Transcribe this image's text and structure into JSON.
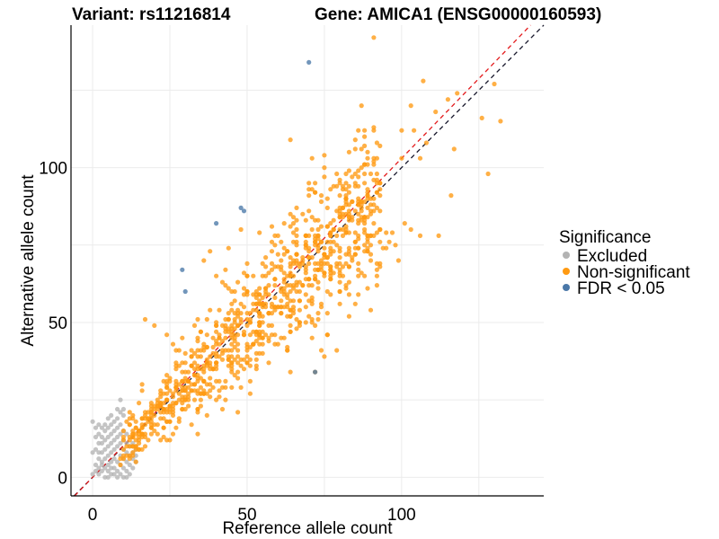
{
  "chart_data": {
    "type": "scatter",
    "title_left": "Variant: rs11216814",
    "title_right": "Gene: AMICA1 (ENSG00000160593)",
    "xlabel": "Reference allele count",
    "ylabel": "Alternative allele count",
    "xlim": [
      -7,
      146
    ],
    "ylim": [
      -6,
      146
    ],
    "xticks": [
      0,
      50,
      100
    ],
    "yticks": [
      0,
      50,
      100
    ],
    "grid": true,
    "reference_lines": [
      {
        "slope": 1.0,
        "intercept": 0,
        "color": "#1a1a2e",
        "style": "dashed"
      },
      {
        "slope": 1.03,
        "intercept": 0,
        "color": "#e31a1c",
        "style": "dashed"
      }
    ],
    "legend": {
      "title": "Significance",
      "position": "right",
      "entries": [
        {
          "label": "Excluded",
          "color": "#b3b3b3"
        },
        {
          "label": "Non-significant",
          "color": "#ff9a12"
        },
        {
          "label": "FDR < 0.05",
          "color": "#4a78a8"
        }
      ]
    },
    "series": [
      {
        "name": "Excluded",
        "color": "#b3b3b3",
        "points": [
          [
            0,
            1
          ],
          [
            1,
            2
          ],
          [
            2,
            1
          ],
          [
            3,
            2
          ],
          [
            1,
            4
          ],
          [
            2,
            3
          ],
          [
            3,
            4
          ],
          [
            4,
            3
          ],
          [
            5,
            2
          ],
          [
            6,
            1
          ],
          [
            2,
            6
          ],
          [
            3,
            5
          ],
          [
            4,
            6
          ],
          [
            5,
            4
          ],
          [
            6,
            5
          ],
          [
            7,
            3
          ],
          [
            8,
            2
          ],
          [
            9,
            1
          ],
          [
            1,
            9
          ],
          [
            2,
            8
          ],
          [
            3,
            8
          ],
          [
            4,
            9
          ],
          [
            5,
            7
          ],
          [
            6,
            8
          ],
          [
            7,
            6
          ],
          [
            8,
            5
          ],
          [
            9,
            4
          ],
          [
            10,
            3
          ],
          [
            11,
            2
          ],
          [
            3,
            11
          ],
          [
            4,
            12
          ],
          [
            5,
            10
          ],
          [
            6,
            11
          ],
          [
            7,
            9
          ],
          [
            8,
            10
          ],
          [
            9,
            7
          ],
          [
            10,
            6
          ],
          [
            11,
            5
          ],
          [
            12,
            4
          ],
          [
            13,
            6
          ],
          [
            2,
            14
          ],
          [
            3,
            13
          ],
          [
            4,
            15
          ],
          [
            5,
            13
          ],
          [
            6,
            14
          ],
          [
            7,
            12
          ],
          [
            8,
            13
          ],
          [
            9,
            11
          ],
          [
            10,
            9
          ],
          [
            11,
            8
          ],
          [
            12,
            7
          ],
          [
            13,
            8
          ],
          [
            14,
            7
          ],
          [
            1,
            16
          ],
          [
            2,
            17
          ],
          [
            3,
            16
          ],
          [
            4,
            17
          ],
          [
            5,
            16
          ],
          [
            6,
            17
          ],
          [
            7,
            15
          ],
          [
            8,
            16
          ],
          [
            9,
            14
          ],
          [
            10,
            12
          ],
          [
            11,
            11
          ],
          [
            12,
            10
          ],
          [
            13,
            11
          ],
          [
            14,
            9
          ],
          [
            5,
            19
          ],
          [
            6,
            20
          ],
          [
            7,
            18
          ],
          [
            8,
            19
          ],
          [
            9,
            17
          ],
          [
            10,
            15
          ],
          [
            11,
            14
          ],
          [
            8,
            22
          ],
          [
            9,
            21
          ],
          [
            10,
            20
          ],
          [
            9,
            25
          ],
          [
            10,
            22
          ],
          [
            0,
            18
          ],
          [
            1,
            13
          ],
          [
            0,
            8
          ],
          [
            2,
            11
          ],
          [
            12,
            1
          ],
          [
            13,
            3
          ],
          [
            14,
            5
          ],
          [
            6,
            3
          ],
          [
            7,
            1
          ],
          [
            8,
            0
          ],
          [
            4,
            0
          ],
          [
            5,
            0
          ],
          [
            10,
            0
          ],
          [
            11,
            0
          ]
        ]
      },
      {
        "name": "Non-significant",
        "color": "#ff9a12",
        "generator": {
          "count": 950,
          "x_range": [
            9,
            93
          ],
          "slope": 0.98,
          "noise": 7,
          "seed": 7
        },
        "points": [
          [
            107,
            128
          ],
          [
            130,
            127
          ],
          [
            118,
            124
          ],
          [
            115,
            122
          ],
          [
            103,
            120
          ],
          [
            111,
            118
          ],
          [
            104,
            112
          ],
          [
            126,
            116
          ],
          [
            100,
            112
          ],
          [
            132,
            115
          ],
          [
            108,
            108
          ],
          [
            88,
            110
          ],
          [
            100,
            103
          ],
          [
            106,
            103
          ],
          [
            117,
            106
          ],
          [
            64,
            109
          ],
          [
            75,
            104
          ],
          [
            92,
            103
          ],
          [
            128,
            98
          ],
          [
            116,
            91
          ],
          [
            112,
            78
          ],
          [
            101,
            82
          ],
          [
            103,
            80
          ],
          [
            106,
            78
          ],
          [
            98,
            75
          ],
          [
            95,
            74
          ],
          [
            99,
            70
          ],
          [
            59,
            75
          ],
          [
            60,
            72
          ],
          [
            55,
            69
          ],
          [
            72,
            34
          ],
          [
            64,
            34
          ],
          [
            57,
            37
          ],
          [
            55,
            45
          ],
          [
            50,
            60
          ],
          [
            40,
            65
          ],
          [
            42,
            63
          ],
          [
            45,
            60
          ],
          [
            17,
            51
          ],
          [
            20,
            49
          ],
          [
            24,
            46
          ],
          [
            26,
            43
          ],
          [
            30,
            40
          ],
          [
            80,
            96
          ],
          [
            82,
            93
          ],
          [
            90,
            98
          ],
          [
            86,
            90
          ],
          [
            79,
            86
          ],
          [
            83,
            85
          ],
          [
            88,
            83
          ],
          [
            91,
            82
          ],
          [
            93,
            80
          ],
          [
            95,
            79
          ],
          [
            97,
            79
          ],
          [
            96,
            76
          ],
          [
            94,
            74
          ],
          [
            88,
            73
          ],
          [
            85,
            72
          ],
          [
            76,
            76
          ],
          [
            70,
            78
          ],
          [
            66,
            80
          ],
          [
            62,
            82
          ],
          [
            58,
            81
          ],
          [
            54,
            79
          ],
          [
            48,
            80
          ],
          [
            44,
            74
          ],
          [
            38,
            73
          ],
          [
            36,
            70
          ]
        ]
      },
      {
        "name": "FDR < 0.05",
        "color": "#4a78a8",
        "points": [
          [
            70,
            134
          ],
          [
            48,
            87
          ],
          [
            49,
            86
          ],
          [
            40,
            82
          ],
          [
            29,
            67
          ],
          [
            30,
            60
          ],
          [
            72,
            34
          ]
        ]
      }
    ]
  }
}
